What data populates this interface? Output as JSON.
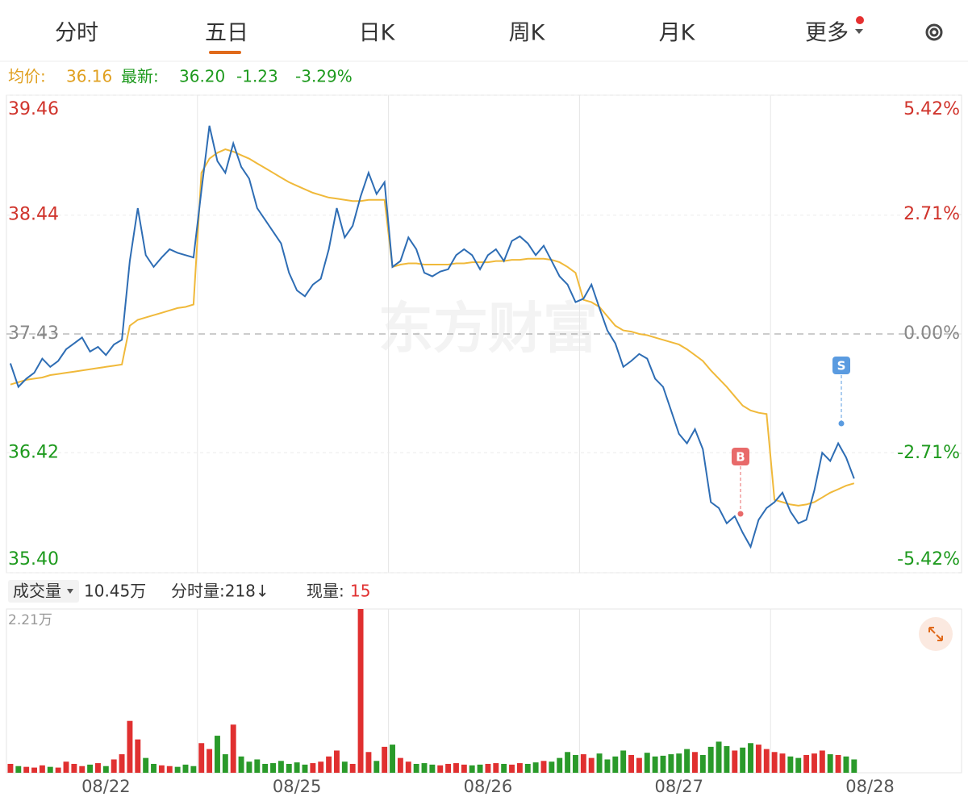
{
  "tabs": [
    "分时",
    "五日",
    "日K",
    "周K",
    "月K",
    "更多"
  ],
  "info": {
    "avg_label": "均价:",
    "avg": "36.16",
    "last_label": "最新:",
    "last": "36.20",
    "change": "-1.23",
    "change_pct": "-3.29%"
  },
  "watermark": "东方财富",
  "annotations": [
    {
      "text": "B",
      "color": "#e86a6a"
    },
    {
      "text": "S",
      "color": "#5a9be0"
    }
  ],
  "volume_bar": {
    "label": "成交量",
    "total": "10.45万",
    "minute": "分时量:218↓",
    "current_label": "现量:",
    "current": "15"
  },
  "chart_data": [
    {
      "type": "line",
      "ylim": [
        35.4,
        39.46
      ],
      "yticks": [
        39.46,
        38.44,
        37.43,
        36.42,
        {
          "value": 35.4,
          "label": "35.40"
        }
      ],
      "y2lim": [
        -5.42,
        5.42
      ],
      "y2ticks": [
        {
          "value": 5.42,
          "label": "5.42%"
        },
        {
          "value": 2.71,
          "label": "2.71%"
        },
        {
          "value": 0,
          "label": "0.00%"
        },
        {
          "value": -2.71,
          "label": "-2.71%"
        },
        {
          "value": -5.42,
          "label": "-5.42%"
        }
      ],
      "series": [
        {
          "color": "#2e6db4",
          "values": [
            37.18,
            36.98,
            37.05,
            37.1,
            37.22,
            37.15,
            37.2,
            37.3,
            37.35,
            37.4,
            37.28,
            37.32,
            37.25,
            37.34,
            37.38,
            38.05,
            38.5,
            38.1,
            38.0,
            38.08,
            38.15,
            38.12,
            38.1,
            38.08,
            38.65,
            39.2,
            38.9,
            38.8,
            39.05,
            38.85,
            38.75,
            38.5,
            38.4,
            38.3,
            38.2,
            37.95,
            37.8,
            37.75,
            37.85,
            37.9,
            38.15,
            38.5,
            38.25,
            38.35,
            38.6,
            38.8,
            38.62,
            38.72,
            38.0,
            38.05,
            38.25,
            38.15,
            37.95,
            37.92,
            37.96,
            37.98,
            38.1,
            38.15,
            38.1,
            37.98,
            38.1,
            38.15,
            38.05,
            38.22,
            38.26,
            38.2,
            38.1,
            38.18,
            38.05,
            37.92,
            37.85,
            37.7,
            37.73,
            37.85,
            37.65,
            37.46,
            37.35,
            37.15,
            37.2,
            37.26,
            37.22,
            37.05,
            36.98,
            36.78,
            36.58,
            36.5,
            36.62,
            36.45,
            36.0,
            35.95,
            35.82,
            35.88,
            35.74,
            35.62,
            35.85,
            35.95,
            36.0,
            36.08,
            35.92,
            35.82,
            35.85,
            36.1,
            36.42,
            36.35,
            36.5,
            36.38,
            36.2,
            null,
            null,
            null,
            null,
            null,
            null,
            null,
            null,
            null,
            null,
            null,
            null,
            null
          ]
        },
        {
          "color": "#f0b93a",
          "values": [
            37.0,
            37.02,
            37.04,
            37.05,
            37.06,
            37.08,
            37.09,
            37.1,
            37.11,
            37.12,
            37.13,
            37.14,
            37.15,
            37.16,
            37.17,
            37.5,
            37.55,
            37.57,
            37.59,
            37.61,
            37.63,
            37.65,
            37.66,
            37.68,
            38.8,
            38.92,
            38.97,
            39.0,
            38.98,
            38.95,
            38.92,
            38.88,
            38.84,
            38.8,
            38.76,
            38.72,
            38.69,
            38.66,
            38.63,
            38.61,
            38.59,
            38.58,
            38.57,
            38.56,
            38.56,
            38.57,
            38.57,
            38.57,
            38.0,
            38.02,
            38.03,
            38.03,
            38.02,
            38.02,
            38.02,
            38.02,
            38.03,
            38.03,
            38.04,
            38.04,
            38.04,
            38.05,
            38.05,
            38.06,
            38.06,
            38.07,
            38.07,
            38.07,
            38.06,
            38.04,
            38.0,
            37.95,
            37.72,
            37.7,
            37.66,
            37.58,
            37.5,
            37.46,
            37.45,
            37.43,
            37.42,
            37.4,
            37.38,
            37.36,
            37.34,
            37.3,
            37.25,
            37.2,
            37.12,
            37.05,
            36.98,
            36.9,
            36.82,
            36.78,
            36.76,
            36.75,
            36.02,
            36.0,
            35.98,
            35.97,
            35.98,
            36.0,
            36.04,
            36.08,
            36.11,
            36.14,
            36.16,
            null,
            null,
            null,
            null,
            null,
            null,
            null,
            null,
            null,
            null,
            null,
            null,
            null
          ]
        }
      ]
    },
    {
      "type": "bar",
      "categories": [
        null,
        null,
        null,
        null,
        null,
        null,
        null,
        null,
        null,
        null,
        null,
        null,
        "08/22",
        null,
        null,
        null,
        null,
        null,
        null,
        null,
        null,
        null,
        null,
        null,
        null,
        null,
        null,
        null,
        null,
        null,
        null,
        null,
        null,
        null,
        null,
        null,
        "08/25",
        null,
        null,
        null,
        null,
        null,
        null,
        null,
        null,
        null,
        null,
        null,
        null,
        null,
        null,
        null,
        null,
        null,
        null,
        null,
        null,
        null,
        null,
        null,
        "08/26",
        null,
        null,
        null,
        null,
        null,
        null,
        null,
        null,
        null,
        null,
        null,
        null,
        null,
        null,
        null,
        null,
        null,
        null,
        null,
        null,
        null,
        null,
        null,
        "08/27",
        null,
        null,
        null,
        null,
        null,
        null,
        null,
        null,
        null,
        null,
        null,
        null,
        null,
        null,
        null,
        null,
        null,
        null,
        null,
        null,
        null,
        null,
        null,
        "08/28",
        null,
        null,
        null,
        null,
        null,
        null,
        null,
        null,
        null,
        null,
        null
      ],
      "ylim": [
        0,
        22100
      ],
      "yticks": [
        {
          "value": 22100,
          "label": "2.21万"
        }
      ],
      "colors": {
        "up": "#e03030",
        "down": "#2a9a2a"
      },
      "values": [
        1200,
        900,
        800,
        700,
        1000,
        800,
        700,
        1500,
        1200,
        900,
        1100,
        1300,
        900,
        1800,
        2500,
        7000,
        4500,
        2000,
        1200,
        1000,
        900,
        800,
        1100,
        900,
        4000,
        3200,
        5000,
        2500,
        6500,
        2200,
        1500,
        1800,
        1200,
        1300,
        1600,
        1200,
        1400,
        1100,
        1300,
        1500,
        2200,
        3000,
        1500,
        1200,
        22100,
        2800,
        1600,
        3500,
        3800,
        2000,
        1500,
        1200,
        1300,
        1100,
        1000,
        1200,
        1300,
        1100,
        1000,
        1100,
        1200,
        1300,
        1200,
        1100,
        1300,
        1200,
        1400,
        1600,
        1500,
        2000,
        2800,
        2400,
        2500,
        2000,
        2600,
        1800,
        2200,
        3000,
        2400,
        2000,
        2700,
        2200,
        2300,
        2500,
        2600,
        3200,
        2800,
        2400,
        3500,
        4200,
        3600,
        3000,
        3400,
        4000,
        3800,
        3200,
        2800,
        2600,
        2200,
        2000,
        2400,
        2600,
        3000,
        2500,
        2400,
        2200,
        1800,
        null,
        null,
        null,
        null,
        null,
        null,
        null,
        null,
        null,
        null,
        null,
        null,
        null
      ]
    }
  ]
}
